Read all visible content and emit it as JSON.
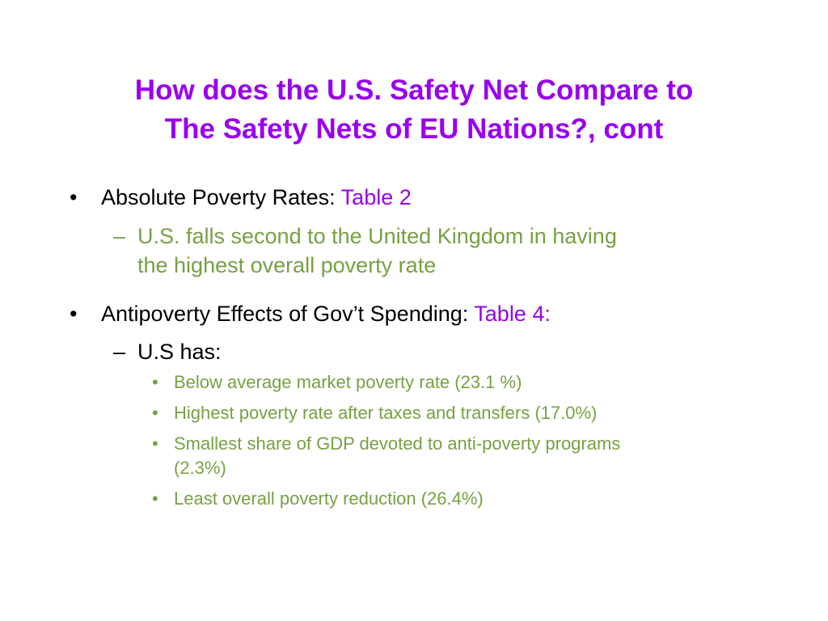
{
  "slide": {
    "title_line1": "How does the U.S. Safety Net Compare to",
    "title_line2": "The Safety Nets of EU Nations?, cont",
    "bullet_char": "•",
    "dash_char": "–",
    "items": [
      {
        "label": "Absolute Poverty Rates: ",
        "link": "Table 2",
        "sub": {
          "line1": "U.S. falls second to the United Kingdom in having",
          "line2": "the highest overall poverty rate"
        }
      },
      {
        "label": "Antipoverty Effects of Gov’t Spending: ",
        "link": "Table 4:",
        "sub": {
          "line1": "U.S has:",
          "points": [
            "Below average market poverty rate (23.1 %)",
            "Highest poverty rate after taxes and transfers (17.0%)",
            "Smallest share of GDP devoted to anti-poverty programs",
            "(2.3%)",
            "Least overall poverty reduction (26.4%)"
          ]
        }
      }
    ]
  },
  "colors": {
    "title": "#9900ee",
    "link": "#9900ee",
    "body": "#000000",
    "sub": "#77a043"
  }
}
